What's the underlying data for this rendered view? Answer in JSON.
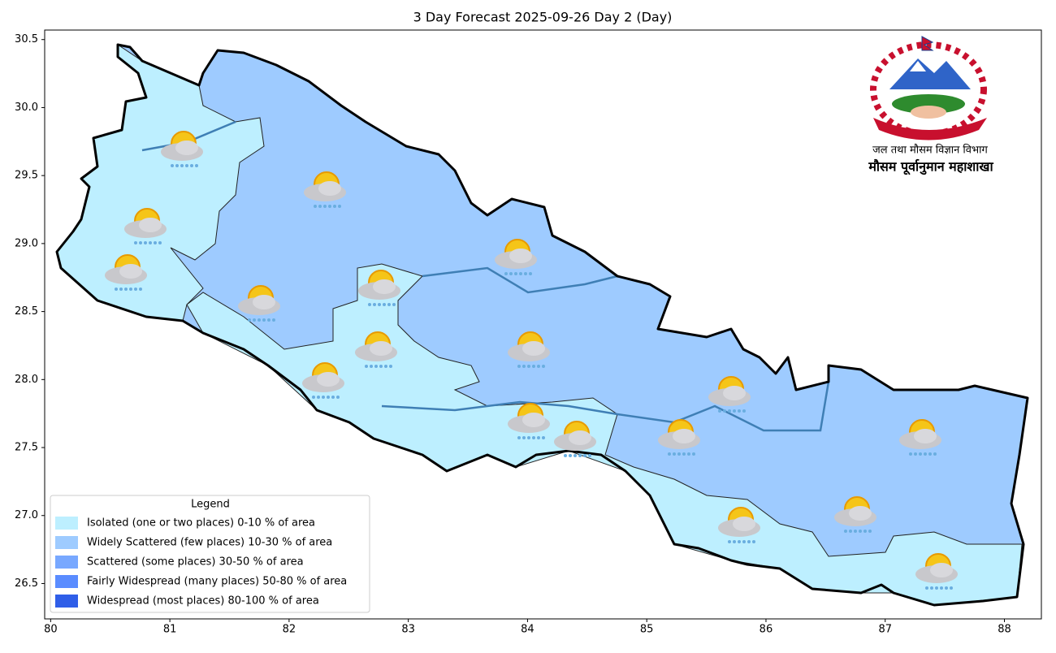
{
  "map": {
    "title": "3 Day Forecast 2025-09-26 Day 2 (Day)",
    "xlim": [
      79.95,
      88.31
    ],
    "ylim": [
      26.24,
      30.57
    ],
    "xticks": [
      80,
      81,
      82,
      83,
      84,
      85,
      86,
      87,
      88
    ],
    "yticks": [
      26.5,
      {
        "value": 27,
        "label": "27.0"
      },
      27.5,
      {
        "value": 28,
        "label": "28.0"
      },
      28.5,
      {
        "value": 29,
        "label": "29.0"
      },
      29.5,
      {
        "value": 30,
        "label": "30.0"
      },
      30.5
    ],
    "legend": {
      "title": "Legend",
      "items": [
        {
          "label": "Isolated (one or two places)  0-10 % of area",
          "color": "#bdefff"
        },
        {
          "label": "Widely Scattered (few places) 10-30 % of area",
          "color": "#9ecbff"
        },
        {
          "label": "Scattered (some places) 30-50  % of area",
          "color": "#78a8ff"
        },
        {
          "label": "Fairly Widespread (many places) 50-80 % of area",
          "color": "#5a8cff"
        },
        {
          "label": "Widespread (most places) 80-100 % of area",
          "color": "#2f5ee8"
        }
      ]
    },
    "emblem": {
      "line1": "जल तथा मौसम विज्ञान विभाग",
      "line2": "मौसम पूर्वानुमान महाशाखा"
    }
  }
}
